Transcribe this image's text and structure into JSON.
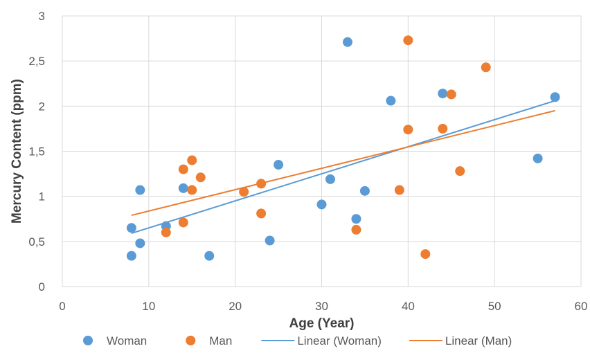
{
  "chart_data": {
    "type": "scatter",
    "title": "",
    "xlabel": "Age (Year)",
    "ylabel": "Mercury Content (ppm)",
    "xlim": [
      0,
      60
    ],
    "ylim": [
      0,
      3
    ],
    "x_ticks": [
      0,
      10,
      20,
      30,
      40,
      50,
      60
    ],
    "y_ticks": [
      0,
      0.5,
      1,
      1.5,
      2,
      2.5,
      3
    ],
    "x_tick_labels": [
      "0",
      "10",
      "20",
      "30",
      "40",
      "50",
      "60"
    ],
    "y_tick_labels": [
      "0",
      "0,5",
      "1",
      "1,5",
      "2",
      "2,5",
      "3"
    ],
    "grid": true,
    "legend_position": "bottom",
    "series": [
      {
        "name": "Woman",
        "color": "#5B9BD5",
        "points": [
          [
            8,
            0.34
          ],
          [
            8,
            0.65
          ],
          [
            9,
            0.48
          ],
          [
            9,
            1.07
          ],
          [
            12,
            0.67
          ],
          [
            14,
            1.09
          ],
          [
            17,
            0.34
          ],
          [
            24,
            0.51
          ],
          [
            25,
            1.35
          ],
          [
            30,
            0.91
          ],
          [
            31,
            1.19
          ],
          [
            33,
            2.71
          ],
          [
            34,
            0.75
          ],
          [
            35,
            1.06
          ],
          [
            38,
            2.06
          ],
          [
            44,
            2.14
          ],
          [
            55,
            1.42
          ],
          [
            57,
            2.1
          ]
        ]
      },
      {
        "name": "Man",
        "color": "#ED7D31",
        "points": [
          [
            12,
            0.6
          ],
          [
            14,
            0.71
          ],
          [
            14,
            1.3
          ],
          [
            15,
            1.07
          ],
          [
            15,
            1.4
          ],
          [
            16,
            1.21
          ],
          [
            21,
            1.05
          ],
          [
            23,
            0.81
          ],
          [
            23,
            1.14
          ],
          [
            34,
            0.63
          ],
          [
            39,
            1.07
          ],
          [
            40,
            1.74
          ],
          [
            40,
            2.73
          ],
          [
            42,
            0.36
          ],
          [
            44,
            1.75
          ],
          [
            45,
            2.13
          ],
          [
            46,
            1.28
          ],
          [
            49,
            2.43
          ]
        ]
      }
    ],
    "trendlines": [
      {
        "name": "Linear (Woman)",
        "color": "#5B9BD5",
        "x": [
          8,
          57
        ],
        "y": [
          0.59,
          2.06
        ]
      },
      {
        "name": "Linear (Man)",
        "color": "#ED7D31",
        "x": [
          8,
          57
        ],
        "y": [
          0.79,
          1.95
        ]
      }
    ],
    "legend": [
      {
        "label": "Woman",
        "kind": "marker",
        "color": "#5B9BD5"
      },
      {
        "label": "Man",
        "kind": "marker",
        "color": "#ED7D31"
      },
      {
        "label": "Linear (Woman)",
        "kind": "line",
        "color": "#5B9BD5"
      },
      {
        "label": "Linear (Man)",
        "kind": "line",
        "color": "#ED7D31"
      }
    ]
  }
}
